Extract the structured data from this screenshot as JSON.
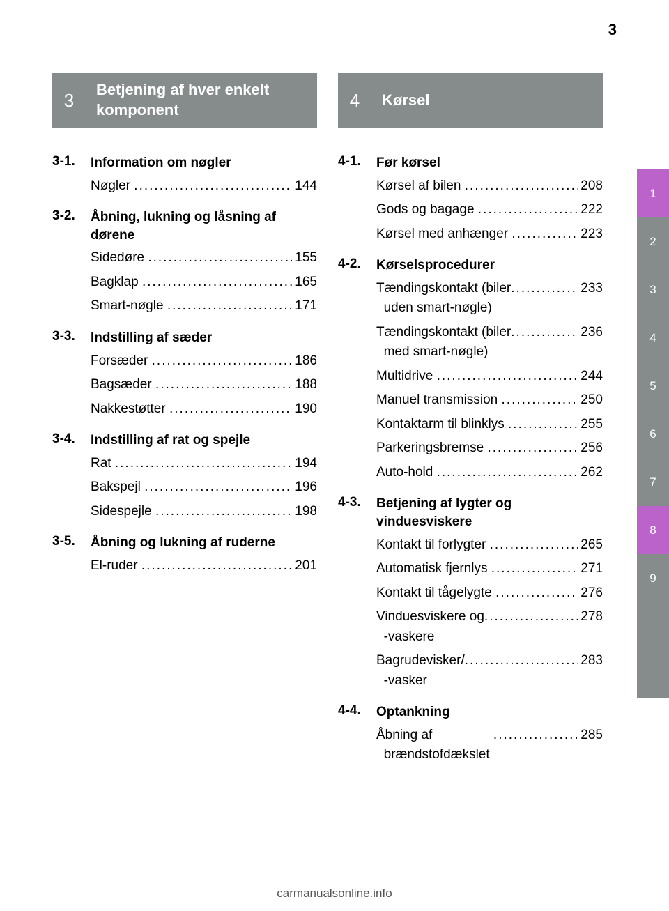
{
  "page_number_top": "3",
  "left": {
    "header_num": "3",
    "header_title": "Betjening af hver enkelt komponent",
    "sections": [
      {
        "num": "3-1.",
        "title": "Information om nøgler",
        "items": [
          {
            "t": "Nøgler",
            "p": "144"
          }
        ]
      },
      {
        "num": "3-2.",
        "title": "Åbning, lukning og låsning af dørene",
        "items": [
          {
            "t": "Sidedøre",
            "p": "155"
          },
          {
            "t": "Bagklap",
            "p": "165"
          },
          {
            "t": "Smart-nøgle",
            "p": "171"
          }
        ]
      },
      {
        "num": "3-3.",
        "title": "Indstilling af sæder",
        "items": [
          {
            "t": "Forsæder",
            "p": "186"
          },
          {
            "t": "Bagsæder",
            "p": "188"
          },
          {
            "t": "Nakkestøtter",
            "p": "190"
          }
        ]
      },
      {
        "num": "3-4.",
        "title": "Indstilling af rat og spejle",
        "items": [
          {
            "t": "Rat",
            "p": "194"
          },
          {
            "t": "Bakspejl",
            "p": "196"
          },
          {
            "t": "Sidespejle",
            "p": "198"
          }
        ]
      },
      {
        "num": "3-5.",
        "title": "Åbning og lukning af ruderne",
        "items": [
          {
            "t": "El-ruder",
            "p": "201"
          }
        ]
      }
    ]
  },
  "right": {
    "header_num": "4",
    "header_title": "Kørsel",
    "sections": [
      {
        "num": "4-1.",
        "title": "Før kørsel",
        "items": [
          {
            "t": "Kørsel af bilen",
            "p": "208"
          },
          {
            "t": "Gods og bagage",
            "p": "222"
          },
          {
            "t": "Kørsel med anhænger",
            "p": "223"
          }
        ]
      },
      {
        "num": "4-2.",
        "title": "Kørselsprocedurer",
        "items": [
          {
            "t": "Tændingskontakt (biler\n  uden smart-nøgle)",
            "p": "233"
          },
          {
            "t": "Tændingskontakt (biler\n  med smart-nøgle)",
            "p": "236"
          },
          {
            "t": "Multidrive",
            "p": "244"
          },
          {
            "t": "Manuel transmission",
            "p": "250"
          },
          {
            "t": "Kontaktarm til blinklys",
            "p": "255"
          },
          {
            "t": "Parkeringsbremse",
            "p": "256"
          },
          {
            "t": "Auto-hold",
            "p": "262"
          }
        ]
      },
      {
        "num": "4-3.",
        "title": "Betjening af lygter og vinduesviskere",
        "items": [
          {
            "t": "Kontakt til forlygter",
            "p": "265"
          },
          {
            "t": "Automatisk fjernlys",
            "p": "271"
          },
          {
            "t": "Kontakt til tågelygte",
            "p": "276"
          },
          {
            "t": "Vinduesviskere og\n  -vaskere",
            "p": "278"
          },
          {
            "t": "Bagrudevisker/\n  -vasker",
            "p": "283"
          }
        ]
      },
      {
        "num": "4-4.",
        "title": "Optankning",
        "items": [
          {
            "t": "Åbning af\n  brændstofdækslet",
            "p": "285"
          }
        ]
      }
    ]
  },
  "tabs": [
    {
      "label": "1",
      "color": "#bc62cb"
    },
    {
      "label": "2",
      "color": "#868c8c"
    },
    {
      "label": "3",
      "color": "#868c8c"
    },
    {
      "label": "4",
      "color": "#868c8c"
    },
    {
      "label": "5",
      "color": "#868c8c"
    },
    {
      "label": "6",
      "color": "#868c8c"
    },
    {
      "label": "7",
      "color": "#868c8c"
    },
    {
      "label": "8",
      "color": "#bc62cb"
    },
    {
      "label": "9",
      "color": "#868c8c"
    },
    {
      "label": "",
      "color": "#868c8c"
    },
    {
      "label": "",
      "color": "#868c8c"
    }
  ],
  "footer": "carmanualsonline.info"
}
